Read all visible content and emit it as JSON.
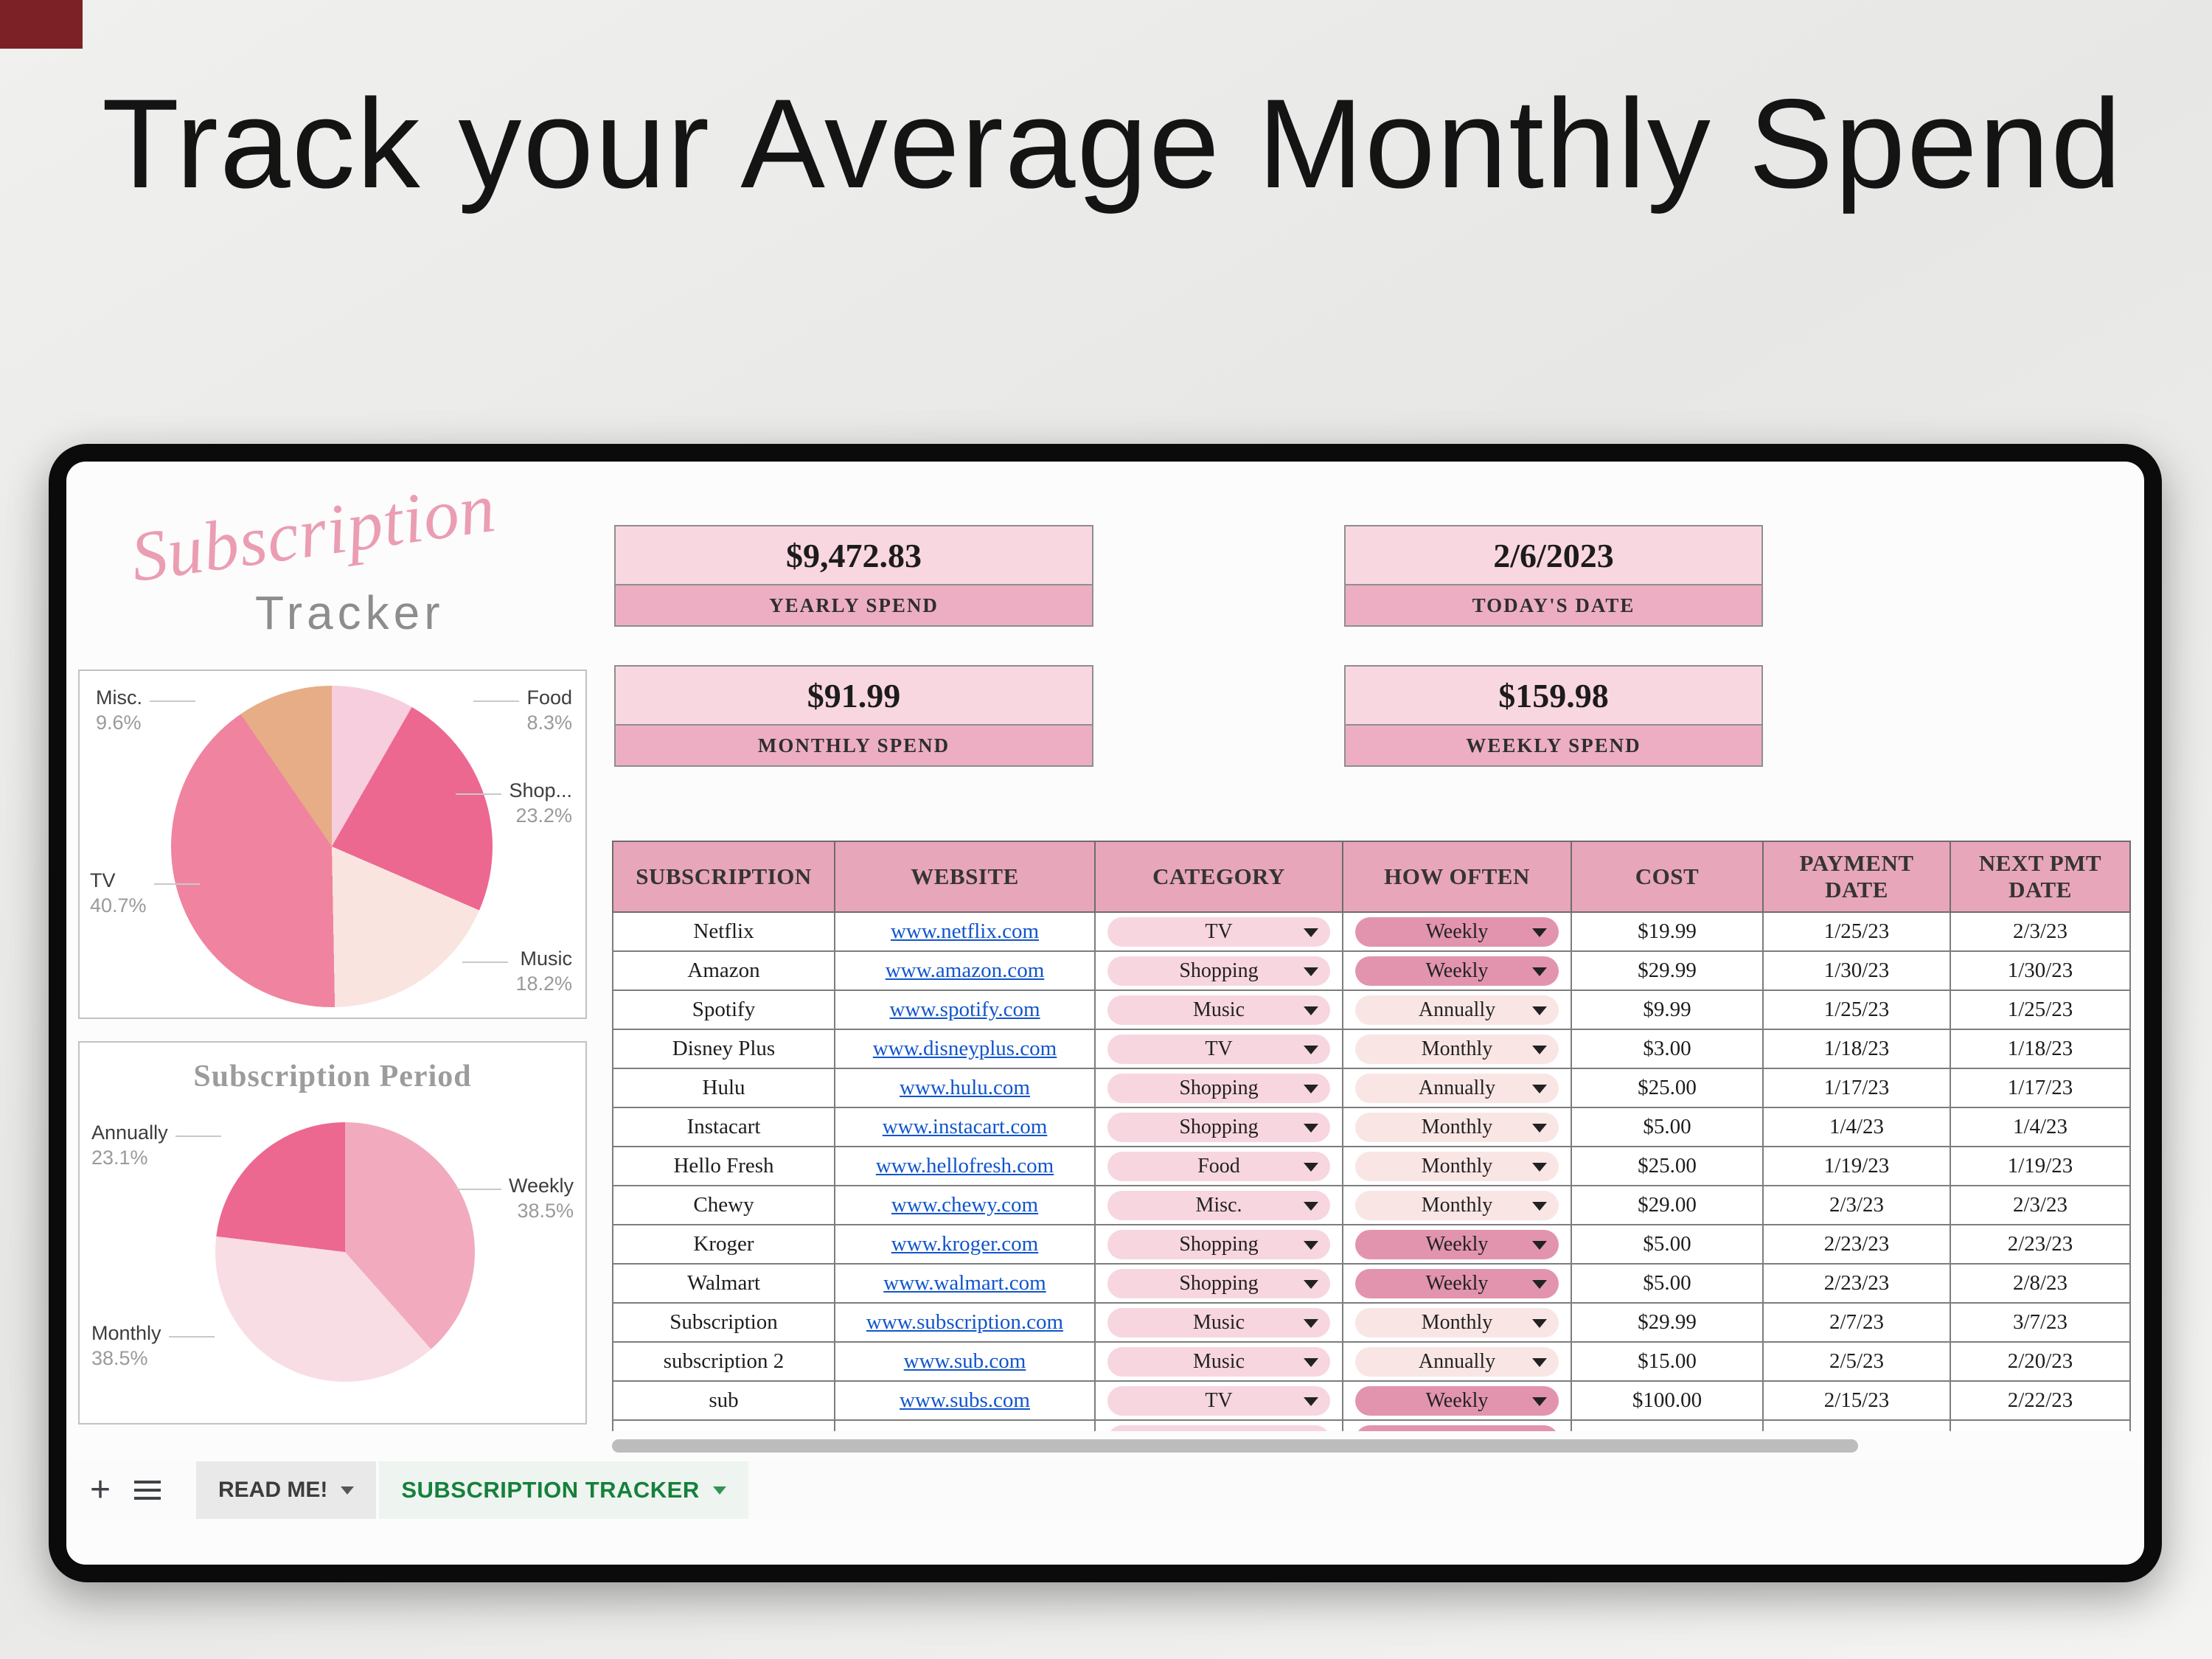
{
  "page": {
    "title": "Track your Average Monthly Spend"
  },
  "logo": {
    "line1": "Subscription",
    "line2": "Tracker"
  },
  "stat_cards": [
    {
      "value": "$9,472.83",
      "label": "YEARLY SPEND"
    },
    {
      "value": "2/6/2023",
      "label": "TODAY'S DATE"
    },
    {
      "value": "$91.99",
      "label": "MONTHLY SPEND"
    },
    {
      "value": "$159.98",
      "label": "WEEKLY SPEND"
    }
  ],
  "chart_data": [
    {
      "type": "pie",
      "title": "",
      "legend_position": "none",
      "slices": [
        {
          "label": "Food",
          "pct": 8.3,
          "color": "#f6cedd",
          "callout": "right-top"
        },
        {
          "label": "Shop...",
          "pct": 23.2,
          "color": "#ec6890",
          "callout": "right-mid"
        },
        {
          "label": "Music",
          "pct": 18.2,
          "color": "#f9e4df",
          "callout": "right-low"
        },
        {
          "label": "TV",
          "pct": 40.7,
          "color": "#f0839f",
          "callout": "left-mid"
        },
        {
          "label": "Misc.",
          "pct": 9.6,
          "color": "#e7ad86",
          "callout": "left-top"
        }
      ]
    },
    {
      "type": "pie",
      "title": "Subscription Period",
      "legend_position": "none",
      "slices": [
        {
          "label": "Weekly",
          "pct": 38.5,
          "color": "#f2abbe",
          "callout": "right-mid"
        },
        {
          "label": "Monthly",
          "pct": 38.5,
          "color": "#f9dde4",
          "callout": "left-low"
        },
        {
          "label": "Annually",
          "pct": 23.1,
          "color": "#ec6890",
          "callout": "left-top"
        }
      ]
    }
  ],
  "table": {
    "headers": [
      "SUBSCRIPTION",
      "WEBSITE",
      "CATEGORY",
      "HOW OFTEN",
      "COST",
      "PAYMENT DATE",
      "NEXT PMT DATE"
    ],
    "rows": [
      {
        "subscription": "Netflix",
        "website": "www.netflix.com",
        "category": "TV",
        "how_often": "Weekly",
        "cost": "$19.99",
        "payment_date": "1/25/23",
        "next_pmt_date": "2/3/23"
      },
      {
        "subscription": "Amazon",
        "website": "www.amazon.com",
        "category": "Shopping",
        "how_often": "Weekly",
        "cost": "$29.99",
        "payment_date": "1/30/23",
        "next_pmt_date": "1/30/23"
      },
      {
        "subscription": "Spotify",
        "website": "www.spotify.com",
        "category": "Music",
        "how_often": "Annually",
        "cost": "$9.99",
        "payment_date": "1/25/23",
        "next_pmt_date": "1/25/23"
      },
      {
        "subscription": "Disney Plus",
        "website": "www.disneyplus.com",
        "category": "TV",
        "how_often": "Monthly",
        "cost": "$3.00",
        "payment_date": "1/18/23",
        "next_pmt_date": "1/18/23"
      },
      {
        "subscription": "Hulu",
        "website": "www.hulu.com",
        "category": "Shopping",
        "how_often": "Annually",
        "cost": "$25.00",
        "payment_date": "1/17/23",
        "next_pmt_date": "1/17/23"
      },
      {
        "subscription": "Instacart",
        "website": "www.instacart.com",
        "category": "Shopping",
        "how_often": "Monthly",
        "cost": "$5.00",
        "payment_date": "1/4/23",
        "next_pmt_date": "1/4/23"
      },
      {
        "subscription": "Hello Fresh",
        "website": "www.hellofresh.com",
        "category": "Food",
        "how_often": "Monthly",
        "cost": "$25.00",
        "payment_date": "1/19/23",
        "next_pmt_date": "1/19/23"
      },
      {
        "subscription": "Chewy",
        "website": "www.chewy.com",
        "category": "Misc.",
        "how_often": "Monthly",
        "cost": "$29.00",
        "payment_date": "2/3/23",
        "next_pmt_date": "2/3/23"
      },
      {
        "subscription": "Kroger",
        "website": "www.kroger.com",
        "category": "Shopping",
        "how_often": "Weekly",
        "cost": "$5.00",
        "payment_date": "2/23/23",
        "next_pmt_date": "2/23/23"
      },
      {
        "subscription": "Walmart",
        "website": "www.walmart.com",
        "category": "Shopping",
        "how_often": "Weekly",
        "cost": "$5.00",
        "payment_date": "2/23/23",
        "next_pmt_date": "2/8/23"
      },
      {
        "subscription": "Subscription",
        "website": "www.subscription.com",
        "category": "Music",
        "how_often": "Monthly",
        "cost": "$29.99",
        "payment_date": "2/7/23",
        "next_pmt_date": "3/7/23"
      },
      {
        "subscription": "subscription 2",
        "website": "www.sub.com",
        "category": "Music",
        "how_often": "Annually",
        "cost": "$15.00",
        "payment_date": "2/5/23",
        "next_pmt_date": "2/20/23"
      },
      {
        "subscription": "sub",
        "website": "www.subs.com",
        "category": "TV",
        "how_often": "Weekly",
        "cost": "$100.00",
        "payment_date": "2/15/23",
        "next_pmt_date": "2/22/23"
      }
    ],
    "has_partial_next_row": true
  },
  "footer": {
    "tabs": [
      {
        "label": "READ ME!",
        "active": false
      },
      {
        "label": "SUBSCRIPTION TRACKER",
        "active": true
      }
    ]
  },
  "colors": {
    "card_value_bg": "#f9d7e1",
    "card_label_bg": "#edaec3",
    "table_header_bg": "#e8a6ba",
    "chip_category": "#f8d6df",
    "chip_light": "#f9e6e4",
    "chip_dark": "#e294ae",
    "link": "#1155cc",
    "tab_active_text": "#15803c",
    "logo_pink": "#eb9db2"
  }
}
